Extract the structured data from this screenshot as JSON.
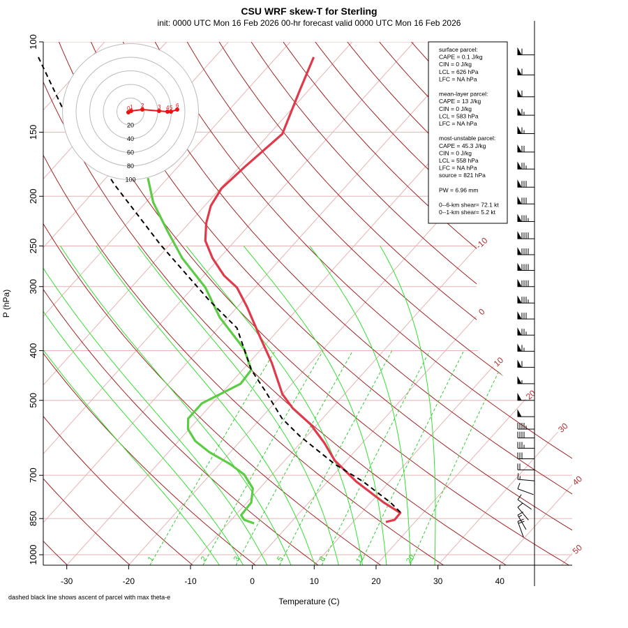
{
  "chart_data": {
    "type": "skewt",
    "title": "CSU WRF skew-T for Sterling",
    "subtitle": "init: 0000 UTC Mon 16 Feb 2026    00-hr forecast valid 0000 UTC Mon 16 Feb 2026",
    "x_label": "Temperature (C)",
    "y_label": "P (hPa)",
    "footnote": "dashed black line shows ascent of parcel with max theta-e",
    "xlim": [
      -33.8,
      51.7
    ],
    "xticks": [
      -30,
      -20,
      -10,
      0,
      10,
      20,
      30,
      40
    ],
    "ylim": [
      1048,
      100
    ],
    "yticks": [
      100,
      150,
      200,
      250,
      300,
      400,
      500,
      700,
      850,
      1000
    ],
    "log_y": true,
    "grid": true,
    "isotherms": [
      -120,
      -110,
      -100,
      -90,
      -80,
      -70,
      -60,
      -50,
      -40,
      -30,
      -20,
      -10,
      0,
      10,
      20,
      30,
      40,
      50
    ],
    "isotherm_labels": [
      -10,
      0,
      10,
      20,
      30,
      40,
      50
    ],
    "isotherm_color": "#e6b3b3",
    "isotherm_label_color": "#b03030",
    "dry_adiabats": [
      240,
      250,
      260,
      270,
      280,
      290,
      300,
      310,
      320,
      330,
      340,
      350,
      360,
      370,
      380,
      390,
      400,
      410,
      420,
      430,
      440
    ],
    "dry_adiabat_color": "#a02424",
    "moist_adiabats": [
      -8,
      -4,
      0,
      4,
      8,
      12,
      16,
      20,
      24,
      28
    ],
    "moist_adiabat_color": "#33e033",
    "mixing_ratios": [
      1,
      2,
      3,
      5,
      8,
      12,
      20
    ],
    "mixing_ratio_color": "#33cc33",
    "series": [
      {
        "color": "#e0394a",
        "dashed": false,
        "pressure": [
          107.1,
          124.5,
          151.2,
          175.8,
          193.1,
          208.8,
          225.8,
          244.2,
          264.1,
          285.6,
          301.2,
          328.9,
          372.8,
          422.5,
          486.6,
          518.0,
          556.6,
          605.8,
          655.1,
          719.6,
          790.7,
          828.5,
          855.0,
          863.2
        ],
        "values": [
          -64.0,
          -61.4,
          -57.9,
          -59.2,
          -59.8,
          -59.0,
          -57.2,
          -54.8,
          -51.1,
          -46.7,
          -42.9,
          -38.4,
          -32.4,
          -26.3,
          -20.0,
          -16.3,
          -11.1,
          -6.1,
          -1.9,
          4.6,
          12.1,
          16.3,
          16.4,
          15.3
        ]
      },
      {
        "color": "#5ccc44",
        "dashed": false,
        "pressure": [
          184.3,
          205.6,
          233.0,
          264.1,
          301.2,
          344.7,
          396.9,
          436.0,
          464.2,
          506.8,
          542.8,
          569.0,
          600.1,
          631.0,
          665.6,
          697.6,
          742.3,
          790.7,
          836.9,
          855.0,
          868.6
        ],
        "values": [
          -73.2,
          -68.8,
          -62.5,
          -56.0,
          -48.0,
          -41.3,
          -32.8,
          -28.6,
          -28.3,
          -31.7,
          -31.7,
          -30.2,
          -27.3,
          -23.4,
          -18.3,
          -14.5,
          -11.1,
          -9.3,
          -9.1,
          -7.9,
          -5.8
        ]
      },
      {
        "color": "#000000",
        "dashed": true,
        "pressure": [
          107.1,
          134.6,
          160.0,
          190.0,
          218.9,
          248.1,
          281.2,
          318.7,
          361.3,
          436.0,
          479.1,
          542.8,
          587.1,
          665.6,
          719.6,
          790.7,
          828.5
        ],
        "values": [
          -108.5,
          -97.2,
          -87.1,
          -77.6,
          -69.1,
          -61.6,
          -53.6,
          -45.6,
          -37.0,
          -28.6,
          -23.3,
          -16.5,
          -11.1,
          -1.4,
          5.7,
          13.2,
          16.4
        ]
      }
    ],
    "hodograph": {
      "rings": [
        20,
        40,
        60,
        80,
        100
      ],
      "color": "#ee1111",
      "u": [
        -3.1,
        1.0,
        17.4,
        42.0,
        54.4,
        59.5,
        68.7
      ],
      "v": [
        -1.0,
        1.0,
        3.1,
        1.0,
        0.0,
        0.0,
        3.1
      ],
      "labels": [
        0,
        1,
        2,
        3,
        4,
        5,
        6
      ]
    },
    "wind_barbs": {
      "pressure": [
        106,
        116,
        128,
        139,
        151,
        164,
        177,
        192,
        207,
        224,
        242,
        260,
        279,
        300,
        323,
        347,
        373,
        401,
        431,
        464,
        500,
        538,
        569,
        592,
        620,
        650,
        683,
        713,
        744,
        781,
        808,
        837,
        861
      ],
      "speed": [
        60,
        60,
        60,
        65,
        65,
        70,
        75,
        80,
        80,
        85,
        90,
        90,
        90,
        90,
        85,
        80,
        75,
        65,
        60,
        55,
        50,
        50,
        45,
        40,
        35,
        30,
        20,
        15,
        10,
        10,
        10,
        15,
        20
      ],
      "direction": [
        270,
        270,
        270,
        270,
        270,
        270,
        270,
        270,
        270,
        270,
        270,
        270,
        270,
        270,
        270,
        270,
        270,
        270,
        270,
        270,
        270,
        270,
        270,
        270,
        270,
        270,
        270,
        275,
        290,
        305,
        320,
        330,
        340
      ]
    },
    "info_box": [
      [
        "surface parcel:",
        "CAPE = 0.1 J/kg",
        "CIN = 0 J/kg",
        "LCL = 626 hPa",
        "LFC = NA hPa"
      ],
      [
        "mean-layer parcel:",
        "CAPE = 13 J/kg",
        "CIN = 0 J/kg",
        "LCL = 583 hPa",
        "LFC = NA hPa"
      ],
      [
        "most-unstable parcel:",
        "CAPE = 45.3 J/kg",
        "CIN = 0 J/kg",
        "LCL = 558 hPa",
        "LFC = NA hPa",
        "source = 821 hPa"
      ],
      [
        "PW =  6.96 mm"
      ],
      [
        "0--6-km shear= 72.1 kt",
        "0--1-km shear= 5.2 kt"
      ]
    ]
  }
}
